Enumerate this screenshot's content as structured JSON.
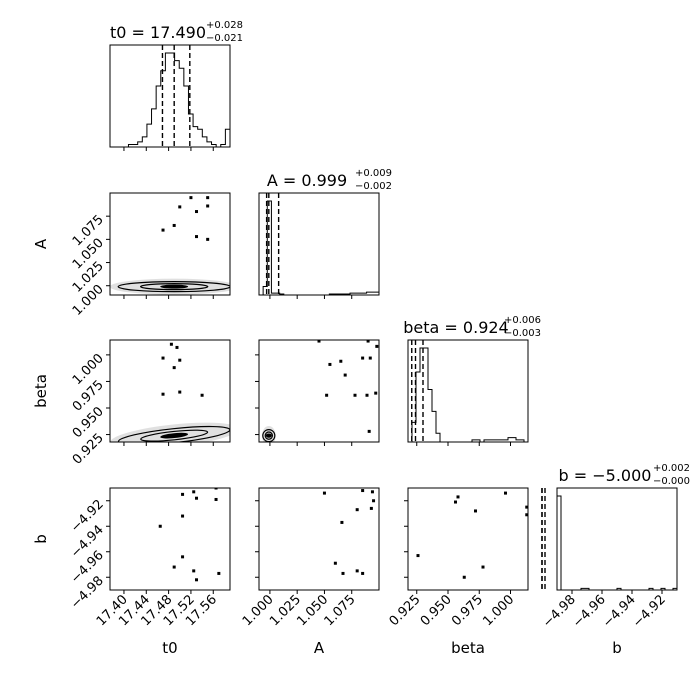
{
  "chart_data": {
    "type": "corner",
    "parameters": [
      "t0",
      "A",
      "beta",
      "b"
    ],
    "titles": [
      {
        "param": "t0",
        "text": "t0 = 17.490",
        "plus": "+0.028",
        "minus": "−0.021"
      },
      {
        "param": "A",
        "text": "A = 0.999",
        "plus": "+0.009",
        "minus": "−0.002"
      },
      {
        "param": "beta",
        "text": "beta = 0.924",
        "plus": "+0.006",
        "minus": "−0.003"
      },
      {
        "param": "b",
        "text": "b = −5.000",
        "plus": "+0.002",
        "minus": "−0.000"
      }
    ],
    "axes": {
      "t0": {
        "range": [
          17.375,
          17.59
        ],
        "ticks": [
          17.4,
          17.44,
          17.48,
          17.52,
          17.56
        ],
        "ticklabels": [
          "17.40",
          "17.44",
          "17.48",
          "17.52",
          "17.56"
        ]
      },
      "A": {
        "range": [
          0.99,
          1.1
        ],
        "ticks": [
          1.0,
          1.025,
          1.05,
          1.075
        ],
        "ticklabels": [
          "1.000",
          "1.025",
          "1.050",
          "1.075"
        ]
      },
      "beta": {
        "range": [
          0.918,
          1.014
        ],
        "ticks": [
          0.925,
          0.95,
          0.975,
          1.0
        ],
        "ticklabels": [
          "0.925",
          "0.950",
          "0.975",
          "1.000"
        ]
      },
      "b": {
        "range": [
          -4.99,
          -4.91
        ],
        "ticks": [
          -4.98,
          -4.96,
          -4.94,
          -4.92
        ],
        "ticklabels": [
          "−4.98",
          "−4.96",
          "−4.94",
          "−4.92"
        ]
      }
    },
    "quantiles": {
      "t0": [
        17.469,
        17.49,
        17.518
      ],
      "A": [
        0.997,
        0.999,
        1.008
      ],
      "beta": [
        0.921,
        0.924,
        0.93
      ],
      "b": [
        -5.0,
        -5.0,
        -4.998
      ]
    },
    "histograms": {
      "t0": {
        "edges_range": [
          17.375,
          17.59
        ],
        "counts": [
          0,
          0,
          0,
          0,
          1,
          1,
          2,
          4,
          9,
          15,
          24,
          30,
          37,
          37,
          34,
          31,
          24,
          13,
          8,
          7,
          4,
          2,
          1,
          0,
          1,
          7
        ]
      },
      "A": {
        "edges_range": [
          0.99,
          1.1
        ],
        "counts": [
          0,
          9,
          100,
          2,
          2,
          1,
          0,
          0,
          0,
          0,
          0,
          0,
          0,
          0,
          0,
          0,
          0,
          1,
          1,
          1,
          1,
          1,
          2,
          2,
          2,
          2,
          3,
          3,
          3
        ]
      },
      "beta": {
        "edges_range": [
          0.918,
          1.014
        ],
        "counts": [
          0,
          9,
          32,
          43,
          43,
          24,
          14,
          4,
          0,
          0,
          0,
          0,
          0,
          0,
          0,
          0,
          1,
          1,
          0,
          1,
          1,
          1,
          1,
          1,
          1,
          2,
          2,
          1,
          1,
          0
        ]
      },
      "b": {
        "edges_range": [
          -4.99,
          -4.91
        ],
        "counts": [
          60,
          0,
          0,
          0,
          0,
          0,
          1,
          1,
          0,
          0,
          0,
          0,
          0,
          0,
          0,
          1,
          0,
          0,
          0,
          0,
          0,
          0,
          0,
          1,
          0,
          0,
          1,
          0,
          0,
          1
        ]
      }
    },
    "scatter_points": {
      "A_vs_t0": [
        [
          17.52,
          1.095
        ],
        [
          17.55,
          1.095
        ],
        [
          17.5,
          1.085
        ],
        [
          17.47,
          1.06
        ],
        [
          17.55,
          1.05
        ],
        [
          17.53,
          1.053
        ],
        [
          17.55,
          1.086
        ],
        [
          17.53,
          1.08
        ],
        [
          17.49,
          1.065
        ]
      ],
      "beta_vs_t0": [
        [
          17.485,
          1.01
        ],
        [
          17.495,
          1.007
        ],
        [
          17.47,
          0.997
        ],
        [
          17.5,
          0.995
        ],
        [
          17.49,
          0.988
        ],
        [
          17.47,
          0.963
        ],
        [
          17.54,
          0.962
        ],
        [
          17.5,
          0.965
        ]
      ],
      "beta_vs_A": [
        [
          1.09,
          1.013
        ],
        [
          1.098,
          1.008
        ],
        [
          1.045,
          1.013
        ],
        [
          1.065,
          0.994
        ],
        [
          1.085,
          0.997
        ],
        [
          1.092,
          0.997
        ],
        [
          1.055,
          0.991
        ],
        [
          1.069,
          0.981
        ],
        [
          1.052,
          0.962
        ],
        [
          1.078,
          0.962
        ],
        [
          1.089,
          0.962
        ],
        [
          1.097,
          0.964
        ],
        [
          1.091,
          0.928
        ]
      ],
      "b_vs_t0": [
        [
          17.475,
          -4.905
        ],
        [
          17.495,
          -4.905
        ],
        [
          17.525,
          -4.913
        ],
        [
          17.505,
          -4.915
        ],
        [
          17.565,
          -4.91
        ],
        [
          17.53,
          -4.918
        ],
        [
          17.565,
          -4.919
        ],
        [
          17.465,
          -4.94
        ],
        [
          17.505,
          -4.932
        ],
        [
          17.505,
          -4.964
        ],
        [
          17.49,
          -4.972
        ],
        [
          17.525,
          -4.975
        ],
        [
          17.57,
          -4.977
        ],
        [
          17.53,
          -4.982
        ]
      ],
      "b_vs_A": [
        [
          1.094,
          -4.905
        ],
        [
          1.1,
          -4.905
        ],
        [
          1.085,
          -4.912
        ],
        [
          1.094,
          -4.913
        ],
        [
          1.05,
          -4.914
        ],
        [
          1.095,
          -4.92
        ],
        [
          1.08,
          -4.927
        ],
        [
          1.093,
          -4.926
        ],
        [
          1.066,
          -4.937
        ],
        [
          1.06,
          -4.969
        ],
        [
          1.08,
          -4.975
        ],
        [
          1.067,
          -4.977
        ],
        [
          1.085,
          -4.977
        ]
      ],
      "b_vs_beta": [
        [
          0.992,
          -4.908
        ],
        [
          1.003,
          -4.905
        ],
        [
          1.006,
          -4.905
        ],
        [
          0.996,
          -4.914
        ],
        [
          0.958,
          -4.917
        ],
        [
          0.956,
          -4.921
        ],
        [
          0.972,
          -4.928
        ],
        [
          1.013,
          -4.925
        ],
        [
          1.013,
          -4.931
        ],
        [
          0.926,
          -4.963
        ],
        [
          0.978,
          -4.972
        ],
        [
          0.963,
          -4.98
        ]
      ]
    }
  }
}
